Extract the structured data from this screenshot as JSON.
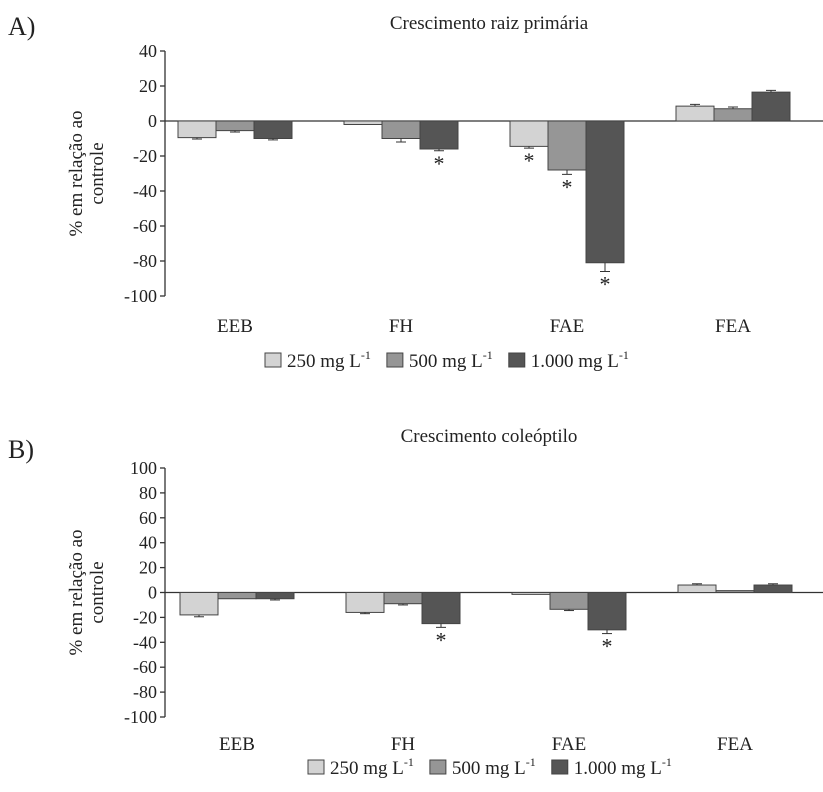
{
  "chart_data": [
    {
      "panel_label": "A)",
      "type": "bar",
      "title": "Crescimento raiz primária",
      "ylabel": "% em relação ao controle",
      "ylabel_lines": [
        "% em relação ao",
        "controle"
      ],
      "xlabel": "",
      "categories": [
        "EEB",
        "FH",
        "FAE",
        "FEA"
      ],
      "ylim": [
        -100,
        40
      ],
      "yticks": [
        40,
        20,
        0,
        -20,
        -40,
        -60,
        -80,
        -100
      ],
      "series": [
        {
          "name": "250 mg L",
          "values": [
            -9.5,
            -2,
            -14.5,
            8.5
          ],
          "errors": [
            0.8,
            0,
            1,
            1
          ],
          "signif": [
            false,
            false,
            true,
            false
          ]
        },
        {
          "name": "500 mg L",
          "values": [
            -5.5,
            -10,
            -28,
            7
          ],
          "errors": [
            0.8,
            2,
            2.5,
            1
          ],
          "signif": [
            false,
            false,
            true,
            false
          ]
        },
        {
          "name": "1.000 mg L",
          "values": [
            -10,
            -16,
            -81,
            16.5
          ],
          "errors": [
            0.8,
            1,
            5,
            1
          ],
          "signif": [
            false,
            true,
            true,
            false
          ]
        }
      ],
      "unit_superscript": "-1",
      "signif_marker": "*",
      "legend_position": "bottom",
      "grid": false
    },
    {
      "panel_label": "B)",
      "type": "bar",
      "title": "Crescimento coleóptilo",
      "ylabel": "% em relação ao controle",
      "ylabel_lines": [
        "% em relação ao",
        "controle"
      ],
      "xlabel": "",
      "categories": [
        "EEB",
        "FH",
        "FAE",
        "FEA"
      ],
      "ylim": [
        -100,
        100
      ],
      "yticks": [
        100,
        80,
        60,
        40,
        20,
        0,
        -20,
        -40,
        -60,
        -80,
        -100
      ],
      "series": [
        {
          "name": "250 mg L",
          "values": [
            -18,
            -16,
            -1.5,
            6
          ],
          "errors": [
            1.5,
            1,
            0,
            1
          ],
          "signif": [
            false,
            false,
            false,
            false
          ]
        },
        {
          "name": "500 mg L",
          "values": [
            -5,
            -9,
            -13.5,
            1.5
          ],
          "errors": [
            0,
            1,
            1,
            0
          ],
          "signif": [
            false,
            false,
            false,
            false
          ]
        },
        {
          "name": "1.000 mg L",
          "values": [
            -5,
            -25,
            -30,
            6
          ],
          "errors": [
            1,
            3,
            3,
            1
          ],
          "signif": [
            false,
            true,
            true,
            false
          ]
        }
      ],
      "unit_superscript": "-1",
      "signif_marker": "*",
      "legend_position": "bottom",
      "grid": false
    }
  ],
  "colors": {
    "series": [
      "#d3d3d3",
      "#969696",
      "#555555"
    ],
    "axis": "#333333"
  }
}
